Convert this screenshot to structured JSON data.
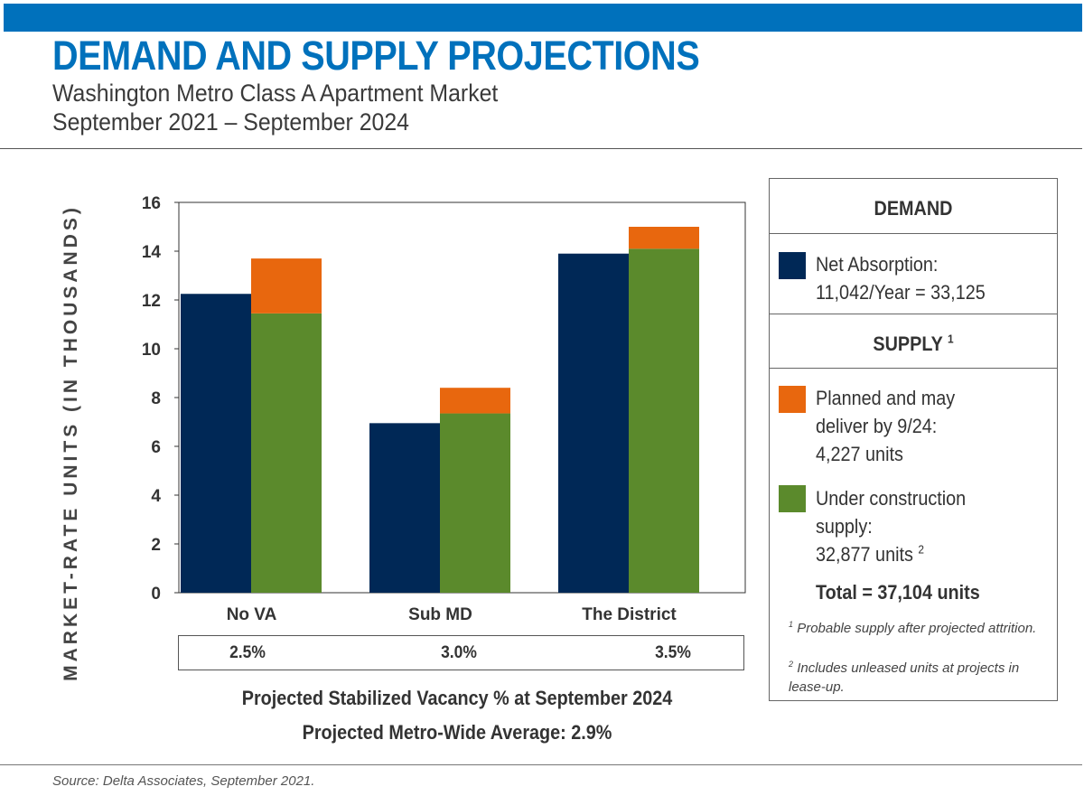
{
  "header": {
    "title": "DEMAND AND SUPPLY PROJECTIONS",
    "subtitle_line1": "Washington Metro Class A Apartment Market",
    "subtitle_line2": "September 2021 – September 2024"
  },
  "chart_data": {
    "type": "bar",
    "ylabel": "MARKET-RATE UNITS (IN THOUSANDS)",
    "ylim": [
      0,
      16
    ],
    "yticks": [
      0,
      2,
      4,
      6,
      8,
      10,
      12,
      14,
      16
    ],
    "grid": false,
    "categories": [
      "No VA",
      "Sub MD",
      "The District"
    ],
    "series": [
      {
        "name": "Net Absorption",
        "stack": "demand",
        "color": "#002856",
        "values": [
          12.25,
          6.95,
          13.9
        ]
      },
      {
        "name": "Under construction supply",
        "stack": "supply",
        "color": "#5b8a2c",
        "values": [
          11.45,
          7.35,
          14.1
        ]
      },
      {
        "name": "Planned and may deliver by 9/24",
        "stack": "supply",
        "color": "#e8670e",
        "values": [
          2.25,
          1.05,
          0.9
        ]
      }
    ]
  },
  "vacancy": {
    "values": [
      "2.5%",
      "3.0%",
      "3.5%"
    ],
    "caption": "Projected Stabilized Vacancy % at September 2024",
    "average": "Projected Metro-Wide Average: 2.9%"
  },
  "legend": {
    "demand_header": "DEMAND",
    "net_absorption_line1": "Net Absorption:",
    "net_absorption_line2": "11,042/Year = 33,125",
    "supply_header": "SUPPLY",
    "supply_header_sup": "1",
    "planned_line1": "Planned and may",
    "planned_line2": "deliver by 9/24:",
    "planned_line3": "4,227 units",
    "under_line1": "Under construction",
    "under_line2": "supply:",
    "under_line3": "32,877 units",
    "under_line3_sup": "2",
    "total": "Total = 37,104 units",
    "footnote1_sup": "1",
    "footnote1": "Probable supply after projected attrition.",
    "footnote2_sup": "2",
    "footnote2": "Includes unleased units at projects in lease-up.",
    "colors": {
      "demand": "#002856",
      "planned": "#e8670e",
      "under": "#5b8a2c"
    }
  },
  "footer": {
    "source": "Source: Delta Associates, September 2021."
  }
}
